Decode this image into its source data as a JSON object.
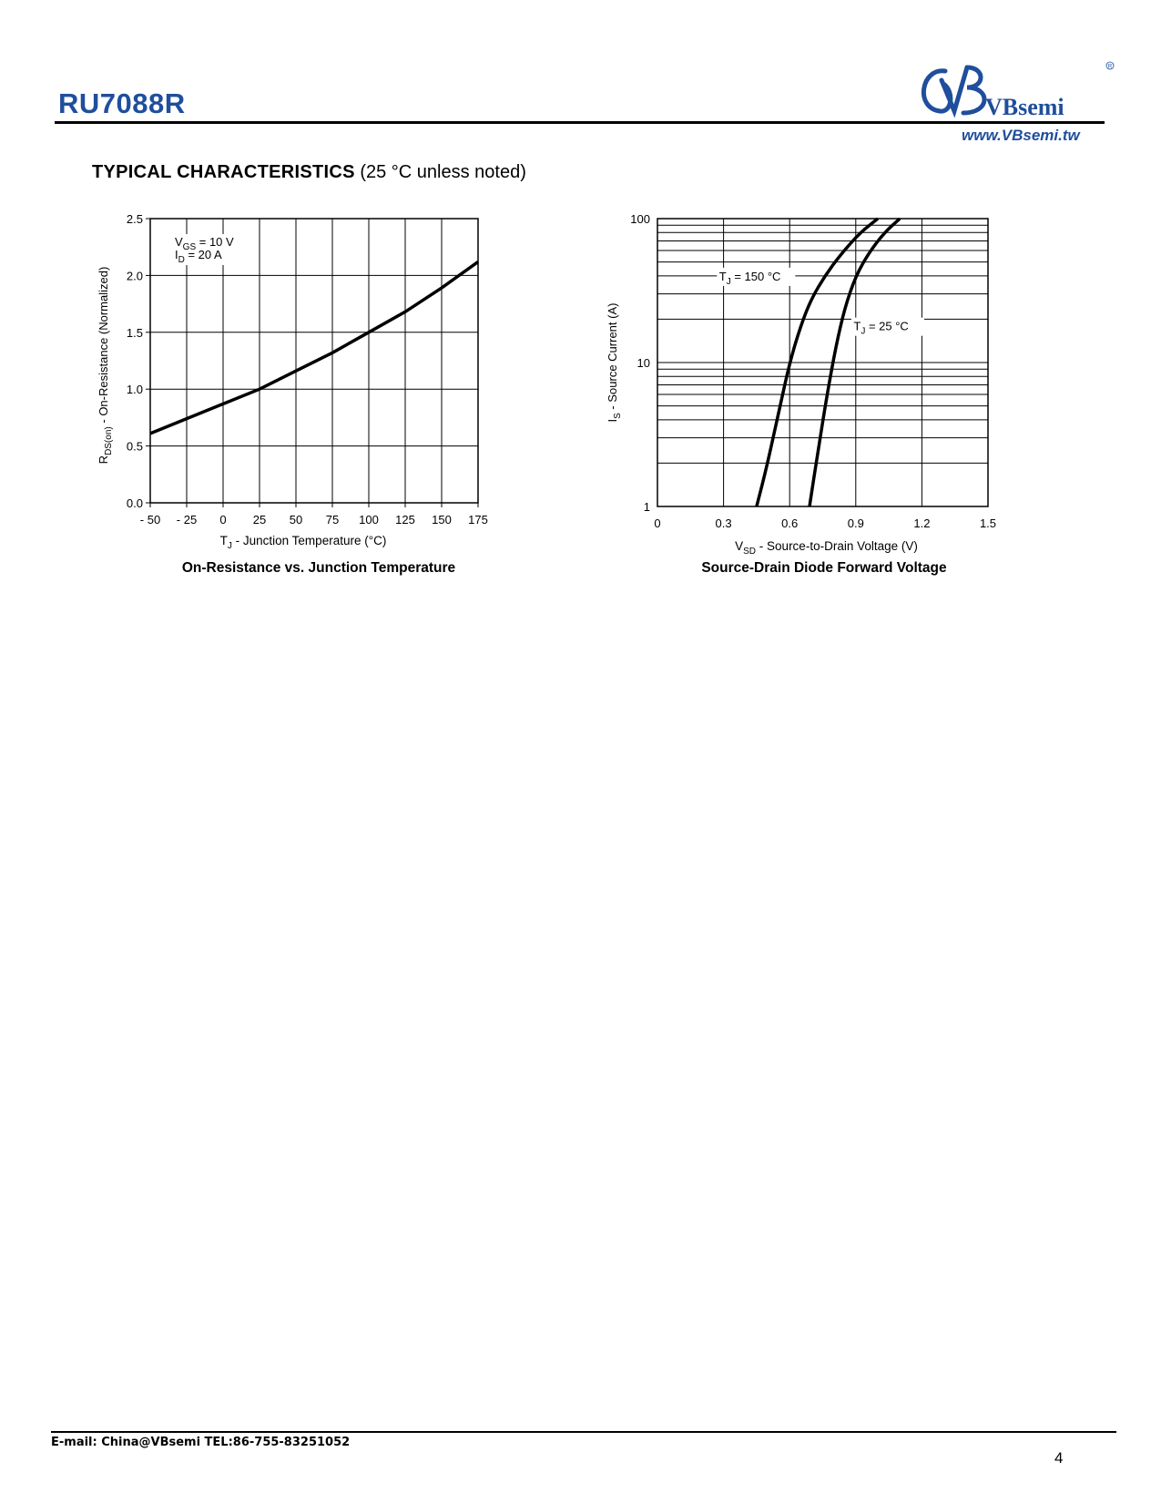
{
  "header": {
    "part_number": "RU7088R",
    "brand": "VBsemi",
    "brand_url": "www.VBsemi.tw",
    "brand_color": "#1f4e9c"
  },
  "section": {
    "title_bold": "TYPICAL CHARACTERISTICS",
    "title_note": "(25 °C unless noted)"
  },
  "chart_data": [
    {
      "type": "line",
      "caption": "On-Resistance vs. Junction Temperature",
      "xlabel": "T",
      "xlabel_sub": "J",
      "xlabel_rest": "  -  Junction Temperature (°C)",
      "ylabel": "R",
      "ylabel_sub": "DS(on)",
      "ylabel_rest": " - On-Resistance (Normalized)",
      "xlim": [
        -50,
        175
      ],
      "ylim": [
        0,
        2.5
      ],
      "x_ticks": [
        -50,
        -25,
        0,
        25,
        50,
        75,
        100,
        125,
        150,
        175
      ],
      "x_tick_labels": [
        "- 50",
        "- 25",
        "0",
        "25",
        "50",
        "75",
        "100",
        "125",
        "150",
        "175"
      ],
      "y_ticks": [
        0,
        0.5,
        1.0,
        1.5,
        2.0,
        2.5
      ],
      "y_tick_labels": [
        "0.0",
        "0.5",
        "1.0",
        "1.5",
        "2.0",
        "2.5"
      ],
      "grid": true,
      "annotations": [
        {
          "main": "V",
          "sub": "GS",
          "rest": " = 10 V"
        },
        {
          "main": "I",
          "sub": "D",
          "rest": " = 20 A"
        }
      ],
      "series": [
        {
          "x": [
            -50,
            -25,
            0,
            25,
            50,
            75,
            100,
            125,
            150,
            175
          ],
          "y": [
            0.61,
            0.74,
            0.87,
            1.0,
            1.16,
            1.32,
            1.5,
            1.68,
            1.89,
            2.12
          ]
        }
      ]
    },
    {
      "type": "line",
      "caption": "Source-Drain Diode Forward Voltage",
      "xlabel": "V",
      "xlabel_sub": "SD",
      "xlabel_rest": " - Source-to-Drain Voltage (V)",
      "ylabel": "I",
      "ylabel_sub": "S",
      "ylabel_rest": "  -  Source Current (A)",
      "xlim": [
        0,
        1.5
      ],
      "ylim": [
        1,
        100
      ],
      "y_scale": "log",
      "x_ticks": [
        0,
        0.3,
        0.6,
        0.9,
        1.2,
        1.5
      ],
      "x_tick_labels": [
        "0",
        "0.3",
        "0.6",
        "0.9",
        "1.2",
        "1.5"
      ],
      "y_ticks": [
        1,
        10,
        100
      ],
      "y_tick_labels": [
        "1",
        "10",
        "100"
      ],
      "grid": true,
      "series": [
        {
          "name_main": "T",
          "name_sub": "J",
          "name_rest": " = 150 °C",
          "x": [
            0.45,
            0.5,
            0.55,
            0.6,
            0.65,
            0.7,
            0.76,
            0.83,
            0.92,
            1.0
          ],
          "y": [
            1,
            2.0,
            4.5,
            10,
            18,
            28,
            40,
            56,
            80,
            100
          ]
        },
        {
          "name_main": "T",
          "name_sub": "J",
          "name_rest": " = 25 °C",
          "x": [
            0.69,
            0.73,
            0.77,
            0.81,
            0.85,
            0.9,
            0.96,
            1.03,
            1.1
          ],
          "y": [
            1,
            2.5,
            6,
            13,
            24,
            40,
            58,
            80,
            100
          ]
        }
      ]
    }
  ],
  "footer": {
    "contact": "E-mail:  China@VBsemi    TEL:86-755-83251052",
    "page": "4"
  }
}
